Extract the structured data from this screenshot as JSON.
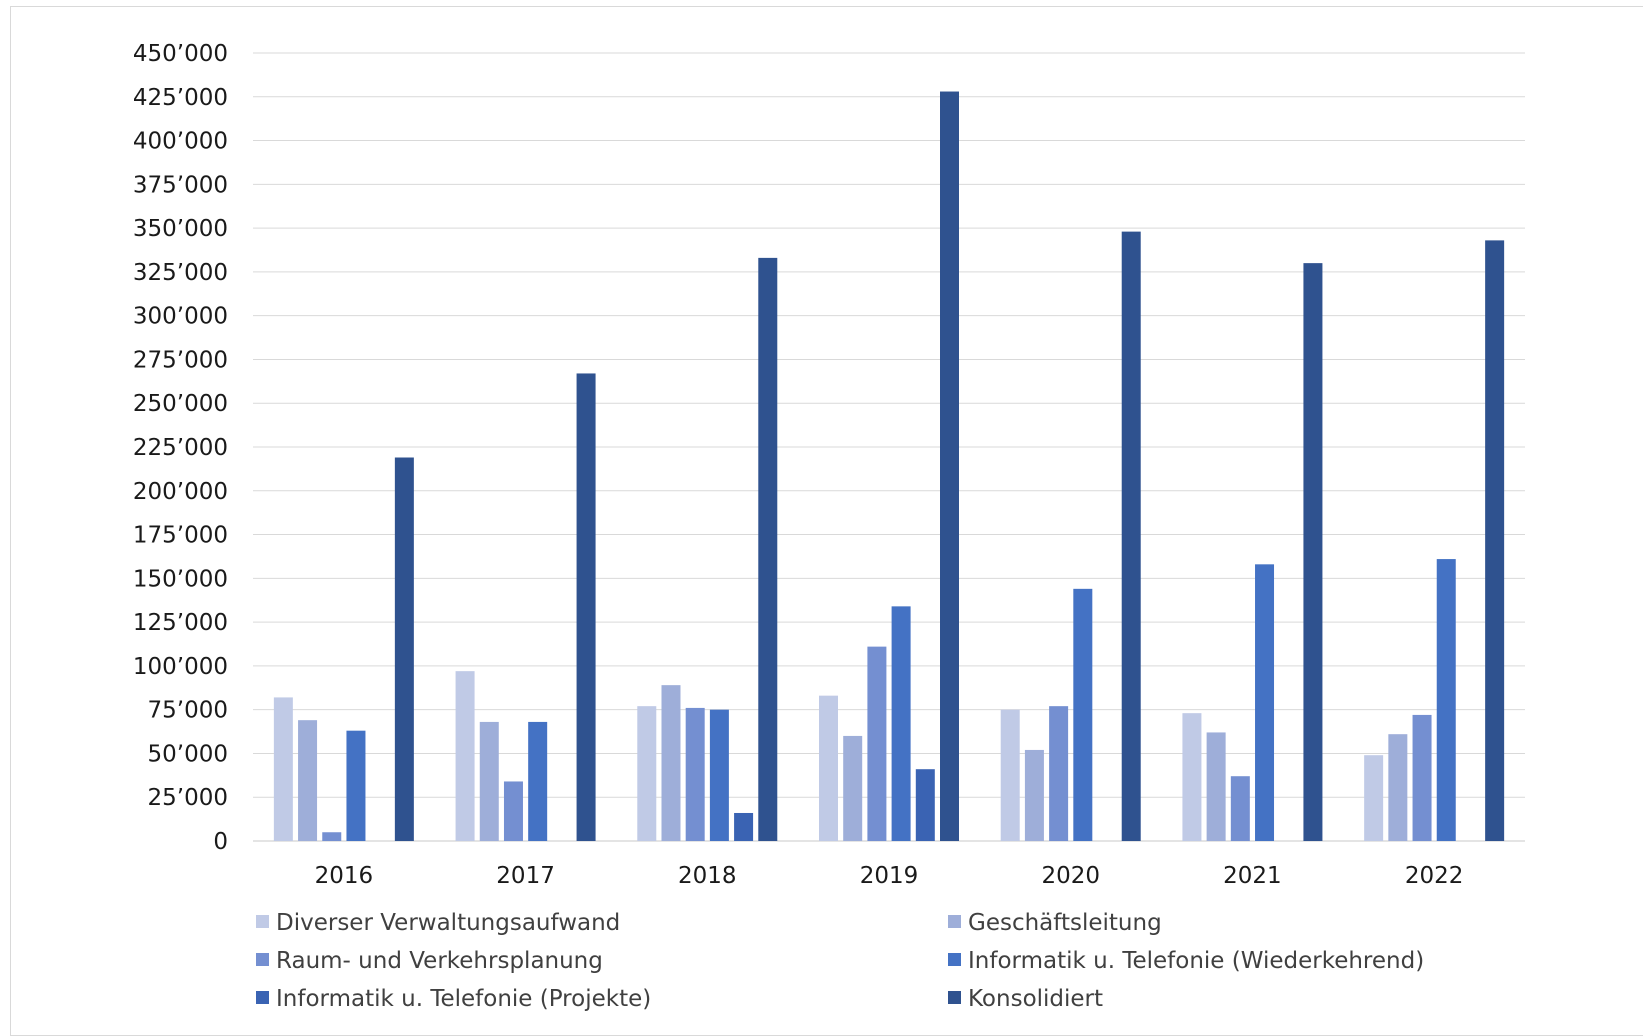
{
  "chart_data": {
    "type": "bar",
    "title": "",
    "xlabel": "",
    "ylabel": "",
    "categories": [
      "2016",
      "2017",
      "2018",
      "2019",
      "2020",
      "2021",
      "2022"
    ],
    "ylim": [
      0,
      450000
    ],
    "yticks": [
      0,
      25000,
      50000,
      75000,
      100000,
      125000,
      150000,
      175000,
      200000,
      225000,
      250000,
      275000,
      300000,
      325000,
      350000,
      375000,
      400000,
      425000,
      450000
    ],
    "ytick_labels": [
      "0",
      "25’000",
      "50’000",
      "75’000",
      "100’000",
      "125’000",
      "150’000",
      "175’000",
      "200’000",
      "225’000",
      "250’000",
      "275’000",
      "300’000",
      "325’000",
      "350’000",
      "375’000",
      "400’000",
      "425’000",
      "450’000"
    ],
    "grid": true,
    "legend_position": "bottom",
    "series": [
      {
        "name": "Diverser Verwaltungsaufwand",
        "color": "#c0cae6",
        "values": [
          82000,
          97000,
          77000,
          83000,
          75000,
          73000,
          49000
        ]
      },
      {
        "name": "Geschäftsleitung",
        "color": "#9eaed9",
        "values": [
          69000,
          68000,
          89000,
          60000,
          52000,
          62000,
          61000
        ]
      },
      {
        "name": "Raum- und Verkehrsplanung",
        "color": "#748fd1",
        "values": [
          5000,
          34000,
          76000,
          111000,
          77000,
          37000,
          72000
        ]
      },
      {
        "name": "Informatik u. Telefonie (Wiederkehrend)",
        "color": "#4472c4",
        "values": [
          63000,
          68000,
          75000,
          134000,
          144000,
          158000,
          161000
        ]
      },
      {
        "name": "Informatik u. Telefonie (Projekte)",
        "color": "#3a63b3",
        "values": [
          0,
          0,
          16000,
          41000,
          0,
          0,
          0
        ]
      },
      {
        "name": "Konsolidiert",
        "color": "#2f528f",
        "values": [
          219000,
          267000,
          333000,
          428000,
          348000,
          330000,
          343000
        ]
      }
    ]
  }
}
